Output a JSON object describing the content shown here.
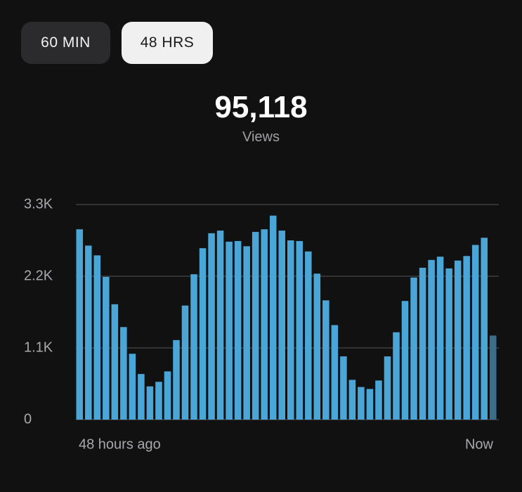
{
  "tabs": [
    "60 MIN",
    "48 HRS"
  ],
  "total": {
    "value": "95,118",
    "label": "Views"
  },
  "chart_data": {
    "type": "bar",
    "categories": [
      "48 hours ago",
      null,
      null,
      null,
      null,
      null,
      null,
      null,
      null,
      null,
      null,
      null,
      null,
      null,
      null,
      null,
      null,
      null,
      null,
      null,
      null,
      null,
      null,
      null,
      null,
      null,
      null,
      null,
      null,
      null,
      null,
      null,
      null,
      null,
      null,
      null,
      null,
      null,
      null,
      null,
      null,
      null,
      null,
      null,
      null,
      null,
      null,
      "Now"
    ],
    "values": [
      2920,
      2670,
      2520,
      2190,
      1770,
      1420,
      1010,
      700,
      510,
      580,
      740,
      1220,
      1750,
      2230,
      2630,
      2860,
      2900,
      2730,
      2740,
      2660,
      2880,
      2920,
      3130,
      2900,
      2750,
      2740,
      2580,
      2240,
      1830,
      1450,
      970,
      610,
      500,
      470,
      600,
      970,
      1340,
      1820,
      2180,
      2330,
      2450,
      2500,
      2320,
      2440,
      2510,
      2680,
      2790,
      1290
    ],
    "color": "#4ba6d8",
    "last_color": "#3b6e8b",
    "ylim": [
      0,
      3300
    ],
    "yticks": [
      0,
      {
        "value": 1100,
        "label": "1.1K"
      },
      {
        "value": 2200,
        "label": "2.2K"
      },
      {
        "value": 3300,
        "label": "3.3K"
      }
    ],
    "grid": true
  }
}
